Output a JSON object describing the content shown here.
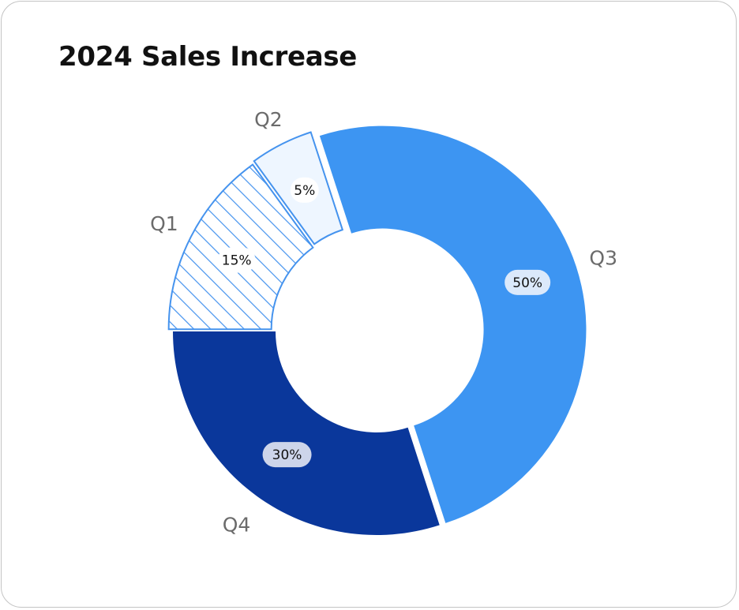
{
  "chart_data": {
    "type": "pie",
    "variant": "donut",
    "title": "2024 Sales Increase",
    "categories": [
      "Q1",
      "Q2",
      "Q3",
      "Q4"
    ],
    "values": [
      15,
      5,
      50,
      30
    ],
    "value_labels": [
      "15%",
      "5%",
      "50%",
      "30%"
    ],
    "legend": "none",
    "colors": {
      "Q1": "#3d8fee",
      "Q2": "#eef6ff",
      "Q3": "#3d95f2",
      "Q4": "#0a379b"
    }
  }
}
